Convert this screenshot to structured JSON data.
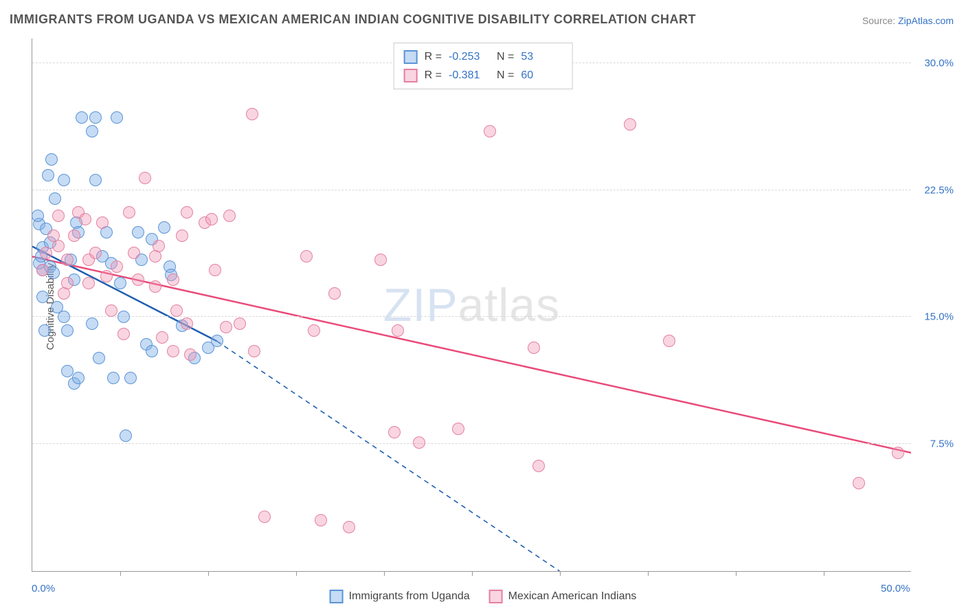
{
  "title": "IMMIGRANTS FROM UGANDA VS MEXICAN AMERICAN INDIAN COGNITIVE DISABILITY CORRELATION CHART",
  "source_prefix": "Source: ",
  "source_link": "ZipAtlas.com",
  "y_axis_label": "Cognitive Disability",
  "watermark": {
    "zip": "ZIP",
    "atlas": "atlas"
  },
  "chart": {
    "type": "scatter",
    "xlim": [
      0,
      50
    ],
    "ylim": [
      0,
      31.5
    ],
    "grid_color": "#d8d8d8",
    "background_color": "#ffffff",
    "yticks": [
      7.5,
      15.0,
      22.5,
      30.0
    ],
    "ytick_labels": [
      "7.5%",
      "15.0%",
      "22.5%",
      "30.0%"
    ],
    "xticks": [
      5,
      10,
      15,
      20,
      25,
      30,
      35,
      40,
      45
    ],
    "x_min_label": "0.0%",
    "x_max_label": "50.0%",
    "series": [
      {
        "name": "Immigrants from Uganda",
        "fill": "rgba(129, 175, 230, 0.45)",
        "stroke": "#5a94d6",
        "trend_color": "#1f5fb0",
        "marker_radius": 9,
        "R": "-0.253",
        "N": "53",
        "trend": {
          "x1": 0,
          "y1": 19.2,
          "x2_solid": 10.5,
          "y2_solid": 13.6,
          "x2_dash": 30,
          "y2_dash": 0
        },
        "points": [
          [
            0.4,
            18.2
          ],
          [
            0.5,
            18.6
          ],
          [
            0.6,
            17.8
          ],
          [
            0.6,
            19.1
          ],
          [
            0.4,
            20.5
          ],
          [
            0.3,
            21.0
          ],
          [
            0.8,
            20.2
          ],
          [
            1.0,
            19.4
          ],
          [
            1.0,
            18.0
          ],
          [
            1.2,
            17.6
          ],
          [
            0.6,
            16.2
          ],
          [
            1.4,
            15.6
          ],
          [
            0.7,
            14.2
          ],
          [
            0.9,
            23.4
          ],
          [
            1.1,
            24.3
          ],
          [
            1.3,
            22.0
          ],
          [
            1.8,
            23.1
          ],
          [
            2.5,
            20.6
          ],
          [
            2.6,
            20.0
          ],
          [
            2.2,
            18.4
          ],
          [
            2.4,
            17.2
          ],
          [
            1.8,
            15.0
          ],
          [
            2.0,
            14.2
          ],
          [
            2.4,
            11.1
          ],
          [
            2.6,
            11.4
          ],
          [
            2.0,
            11.8
          ],
          [
            2.8,
            26.8
          ],
          [
            3.6,
            26.8
          ],
          [
            3.4,
            26.0
          ],
          [
            3.6,
            23.1
          ],
          [
            4.8,
            26.8
          ],
          [
            4.2,
            20.0
          ],
          [
            4.0,
            18.6
          ],
          [
            4.5,
            18.2
          ],
          [
            5.0,
            17.0
          ],
          [
            5.2,
            15.0
          ],
          [
            3.4,
            14.6
          ],
          [
            3.8,
            12.6
          ],
          [
            4.6,
            11.4
          ],
          [
            5.3,
            8.0
          ],
          [
            6.0,
            20.0
          ],
          [
            6.2,
            18.4
          ],
          [
            6.8,
            19.6
          ],
          [
            6.5,
            13.4
          ],
          [
            6.8,
            13.0
          ],
          [
            5.6,
            11.4
          ],
          [
            7.5,
            20.3
          ],
          [
            7.8,
            18.0
          ],
          [
            7.9,
            17.5
          ],
          [
            9.2,
            12.6
          ],
          [
            8.5,
            14.5
          ],
          [
            10.0,
            13.2
          ],
          [
            10.5,
            13.6
          ]
        ]
      },
      {
        "name": "Mexican American Indians",
        "fill": "rgba(240, 150, 180, 0.40)",
        "stroke": "#e4809f",
        "trend_color": "#e94b7a",
        "marker_radius": 9,
        "R": "-0.381",
        "N": "60",
        "trend": {
          "x1": 0,
          "y1": 18.6,
          "x2_solid": 50,
          "y2_solid": 7.0,
          "x2_dash": 50,
          "y2_dash": 7.0
        },
        "points": [
          [
            0.8,
            18.8
          ],
          [
            1.2,
            19.8
          ],
          [
            1.5,
            19.2
          ],
          [
            1.5,
            21.0
          ],
          [
            2.0,
            18.4
          ],
          [
            2.0,
            17.0
          ],
          [
            2.4,
            19.8
          ],
          [
            2.6,
            21.2
          ],
          [
            3.0,
            20.8
          ],
          [
            3.2,
            18.4
          ],
          [
            3.2,
            17.0
          ],
          [
            3.6,
            18.8
          ],
          [
            4.0,
            20.6
          ],
          [
            4.2,
            17.4
          ],
          [
            4.5,
            15.4
          ],
          [
            4.8,
            18.0
          ],
          [
            5.5,
            21.2
          ],
          [
            5.2,
            14.0
          ],
          [
            5.8,
            18.8
          ],
          [
            6.0,
            17.2
          ],
          [
            6.4,
            23.2
          ],
          [
            7.0,
            16.8
          ],
          [
            7.0,
            18.6
          ],
          [
            7.2,
            19.2
          ],
          [
            7.4,
            13.8
          ],
          [
            8.0,
            17.2
          ],
          [
            8.0,
            13.0
          ],
          [
            8.2,
            15.4
          ],
          [
            8.5,
            19.8
          ],
          [
            8.8,
            14.6
          ],
          [
            9.0,
            12.8
          ],
          [
            9.8,
            20.6
          ],
          [
            10.2,
            20.8
          ],
          [
            10.4,
            17.8
          ],
          [
            8.8,
            21.2
          ],
          [
            11.0,
            14.4
          ],
          [
            11.2,
            21.0
          ],
          [
            11.8,
            14.6
          ],
          [
            12.5,
            27.0
          ],
          [
            12.6,
            13.0
          ],
          [
            13.2,
            3.2
          ],
          [
            15.6,
            18.6
          ],
          [
            16.0,
            14.2
          ],
          [
            16.4,
            3.0
          ],
          [
            17.2,
            16.4
          ],
          [
            18.0,
            2.6
          ],
          [
            19.8,
            18.4
          ],
          [
            20.8,
            14.2
          ],
          [
            20.6,
            8.2
          ],
          [
            22.0,
            7.6
          ],
          [
            24.2,
            8.4
          ],
          [
            26.0,
            26.0
          ],
          [
            28.5,
            13.2
          ],
          [
            28.8,
            6.2
          ],
          [
            34.0,
            26.4
          ],
          [
            36.2,
            13.6
          ],
          [
            47.0,
            5.2
          ],
          [
            49.2,
            7.0
          ],
          [
            1.8,
            16.4
          ],
          [
            0.6,
            17.8
          ]
        ]
      }
    ]
  },
  "legend_top": {
    "R_label": "R =",
    "N_label": "N ="
  }
}
